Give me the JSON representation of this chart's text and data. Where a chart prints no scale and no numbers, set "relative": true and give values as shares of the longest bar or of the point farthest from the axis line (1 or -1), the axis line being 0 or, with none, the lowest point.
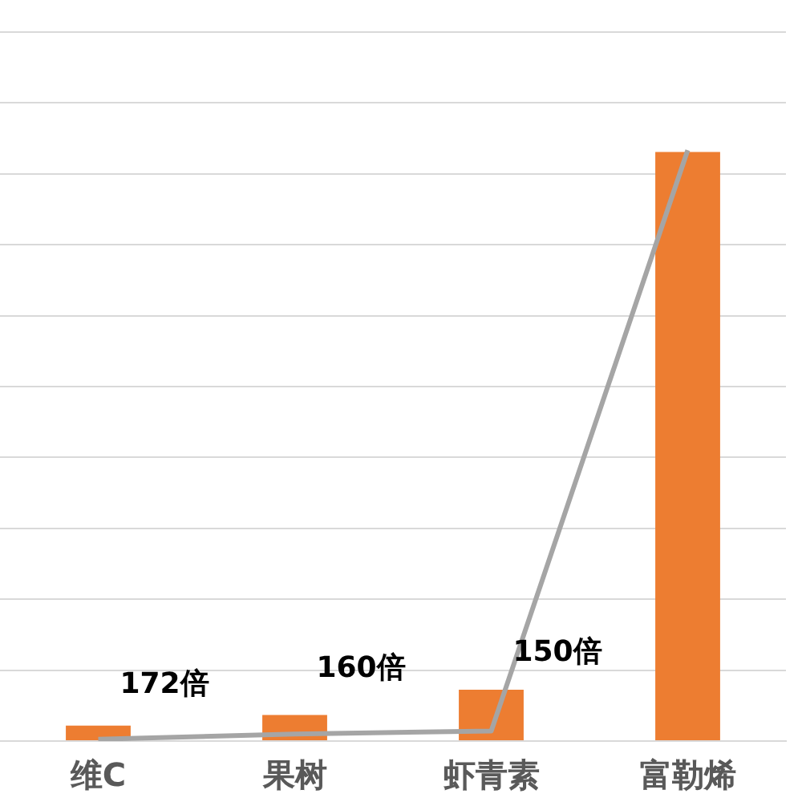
{
  "chart_data": {
    "type": "bar",
    "relative": true,
    "categories": [
      "维C",
      "果树",
      "虾青素",
      "富勒烯"
    ],
    "series": [
      {
        "color": "#ed7d31",
        "values": [
          0.026,
          0.044,
          0.087,
          0.997
        ]
      },
      {
        "type": "line",
        "color": "#a5a5a5",
        "values": [
          0.003,
          0.012,
          0.017,
          1
        ]
      }
    ],
    "annotations": [
      "172倍",
      "160倍",
      "150倍"
    ],
    "grid": "y",
    "legend": false,
    "marker": "none"
  }
}
